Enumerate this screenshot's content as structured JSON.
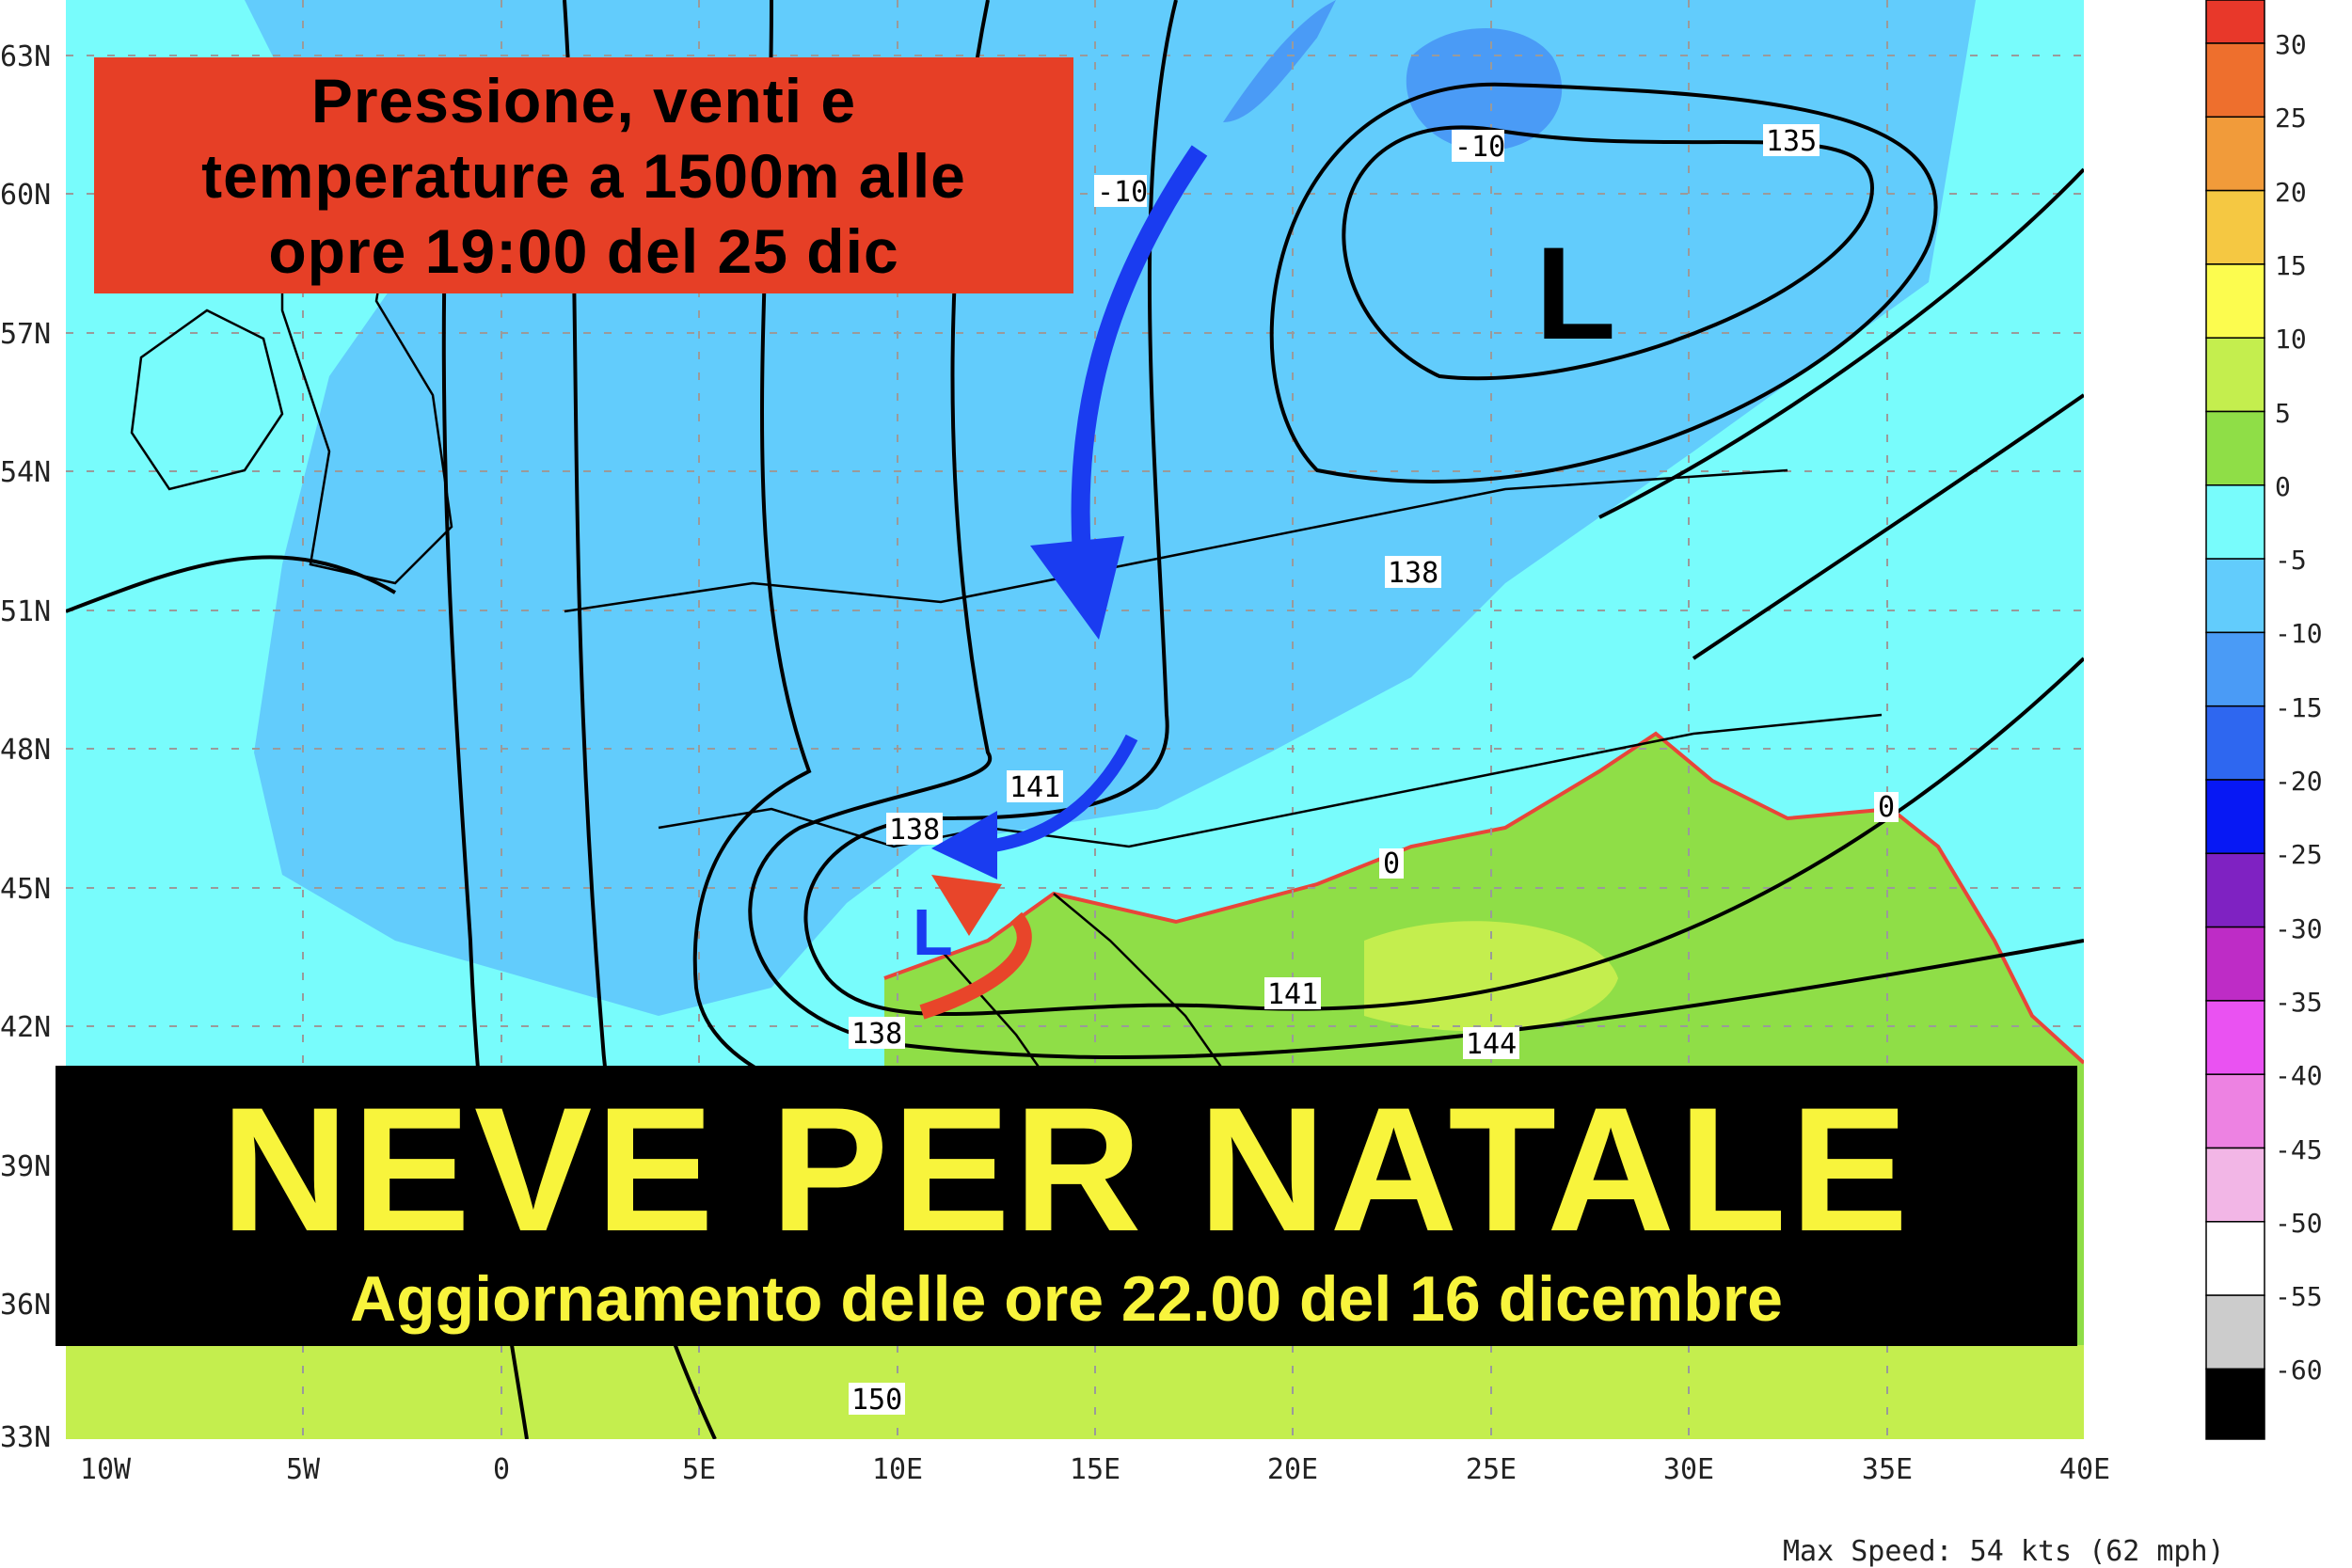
{
  "title_box": {
    "lines": [
      "Pressione, venti e",
      "temperature a 1500m alle",
      "opre 19:00 del 25 dic"
    ],
    "background": "#e63f26"
  },
  "banner": {
    "headline": "NEVE PER NATALE",
    "subtitle": "Aggiornamento delle ore 22.00 del 16 dicembre",
    "text_color": "#f8f43c",
    "background": "#000000"
  },
  "map": {
    "latitude_labels": [
      "63N",
      "60N",
      "57N",
      "54N",
      "51N",
      "48N",
      "45N",
      "42N",
      "39N",
      "36N",
      "33N"
    ],
    "longitude_labels": [
      "10W",
      "5W",
      "0",
      "5E",
      "10E",
      "15E",
      "20E",
      "25E",
      "30E",
      "35E",
      "40E"
    ],
    "isobar_labels": [
      "-10",
      "-10",
      "135",
      "138",
      "141",
      "138",
      "138",
      "141",
      "144",
      "150"
    ],
    "isotherm_labels": [
      "0",
      "0"
    ],
    "pressure_centers": [
      "L",
      "L"
    ],
    "arrows": [
      {
        "color": "#1a3cf0",
        "meaning": "cold air flow from north"
      },
      {
        "color": "#1a3cf0",
        "meaning": "cold air flow into Po valley"
      },
      {
        "color": "#e8452a",
        "meaning": "warm air return flow"
      }
    ],
    "max_speed_text": "Max Speed: 54 kts (62 mph)"
  },
  "colorbar": {
    "labels": [
      "30",
      "25",
      "20",
      "15",
      "10",
      "5",
      "0",
      "-5",
      "-10",
      "-15",
      "-20",
      "-25",
      "-30",
      "-35",
      "-40",
      "-45",
      "-50",
      "-55",
      "-60"
    ],
    "colors": [
      "#e8382a",
      "#ee6f2d",
      "#f19b3a",
      "#f5c842",
      "#fcfc4f",
      "#c4ee4e",
      "#8fde47",
      "#78fcfc",
      "#62ccfc",
      "#4a9bf6",
      "#2e67f0",
      "#0718f4",
      "#7f22c2",
      "#be2cc6",
      "#ea52f2",
      "#ed82e2",
      "#f2b6e6",
      "#ffffff",
      "#cccccc",
      "#000000"
    ]
  }
}
